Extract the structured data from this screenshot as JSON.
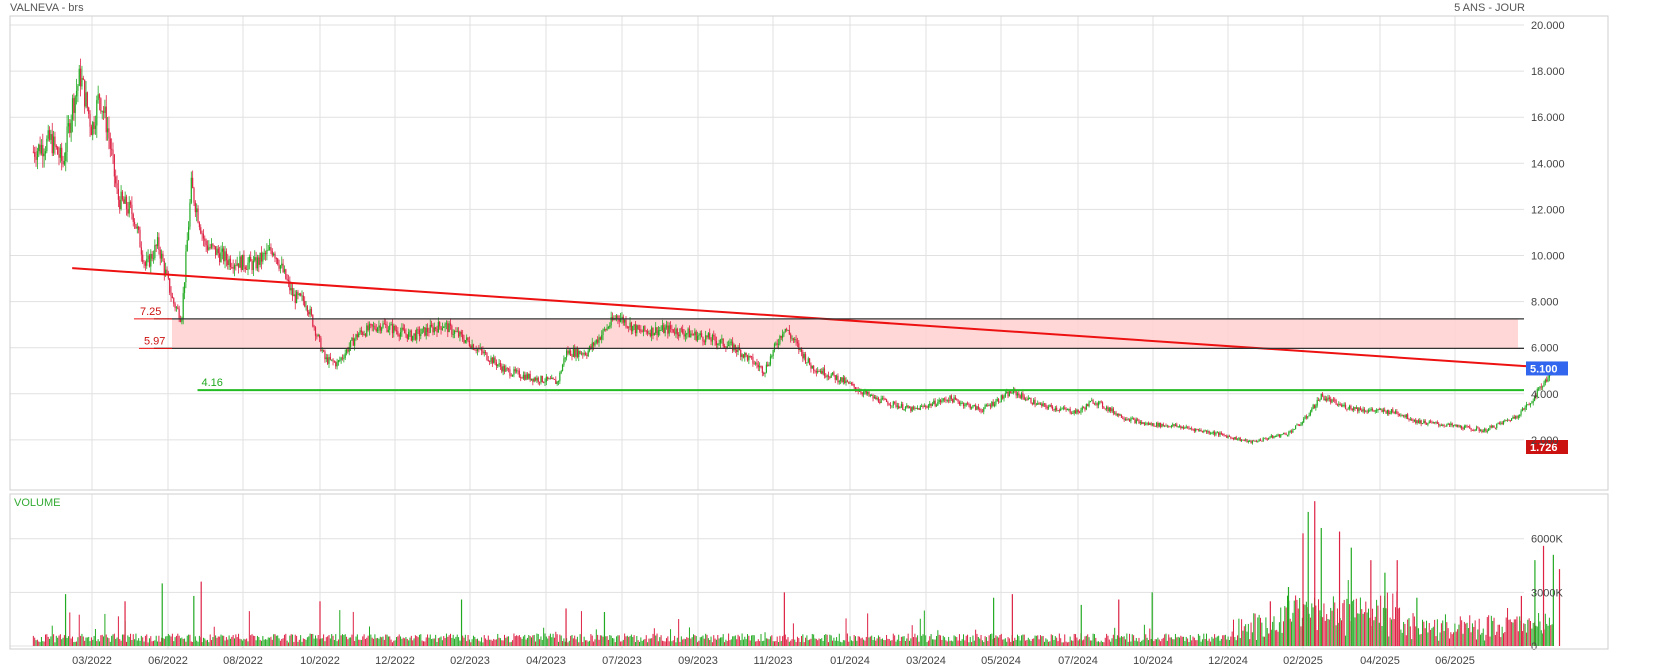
{
  "header": {
    "title": "VALNEVA - brs",
    "period": "5 ANS - JOUR"
  },
  "colors": {
    "up": "#22aa22",
    "down": "#dd2244",
    "trendline": "#ee1111",
    "support_line": "#22bb22",
    "zone_fill": "#ffd0d0",
    "last_price_badge": "#3366ee",
    "min_price_badge": "#cc1111"
  },
  "chart_data": [
    {
      "type": "candlestick",
      "title": "VALNEVA - brs",
      "x_tick_labels": [
        "03/2022",
        "06/2022",
        "08/2022",
        "10/2022",
        "12/2022",
        "02/2023",
        "04/2023",
        "07/2023",
        "09/2023",
        "11/2023",
        "01/2024",
        "03/2024",
        "05/2024",
        "07/2024",
        "10/2024",
        "12/2024",
        "02/2025",
        "04/2025",
        "06/2025"
      ],
      "y_tick_labels": [
        "2.000",
        "4.000",
        "6.000",
        "8.000",
        "10.000",
        "12.000",
        "14.000",
        "16.000",
        "18.000",
        "20.000"
      ],
      "ylim": [
        1.0,
        20.0
      ],
      "grid": true,
      "price_path": [
        [
          "2021-12-20",
          14.5
        ],
        [
          "2022-01-10",
          15.0
        ],
        [
          "2022-01-25",
          14.0
        ],
        [
          "2022-02-05",
          16.5
        ],
        [
          "2022-02-15",
          17.8
        ],
        [
          "2022-03-01",
          15.5
        ],
        [
          "2022-03-10",
          17.0
        ],
        [
          "2022-03-20",
          15.5
        ],
        [
          "2022-04-01",
          12.5
        ],
        [
          "2022-04-20",
          11.8
        ],
        [
          "2022-05-05",
          9.5
        ],
        [
          "2022-05-20",
          10.5
        ],
        [
          "2022-06-05",
          8.0
        ],
        [
          "2022-06-12",
          7.3
        ],
        [
          "2022-06-20",
          13.0
        ],
        [
          "2022-07-01",
          10.5
        ],
        [
          "2022-07-20",
          9.8
        ],
        [
          "2022-08-10",
          9.6
        ],
        [
          "2022-08-25",
          10.3
        ],
        [
          "2022-09-10",
          8.2
        ],
        [
          "2022-09-20",
          8.0
        ],
        [
          "2022-10-05",
          5.5
        ],
        [
          "2022-10-15",
          5.3
        ],
        [
          "2022-11-01",
          6.6
        ],
        [
          "2022-11-20",
          7.0
        ],
        [
          "2022-12-15",
          6.5
        ],
        [
          "2023-01-10",
          7.0
        ],
        [
          "2023-02-01",
          6.2
        ],
        [
          "2023-03-01",
          5.0
        ],
        [
          "2023-03-20",
          4.7
        ],
        [
          "2023-04-15",
          4.5
        ],
        [
          "2023-04-25",
          5.8
        ],
        [
          "2023-05-20",
          5.8
        ],
        [
          "2023-06-25",
          7.4
        ],
        [
          "2023-07-15",
          6.7
        ],
        [
          "2023-08-10",
          6.8
        ],
        [
          "2023-09-10",
          6.4
        ],
        [
          "2023-10-01",
          6.0
        ],
        [
          "2023-10-25",
          5.0
        ],
        [
          "2023-11-10",
          6.9
        ],
        [
          "2023-12-01",
          5.2
        ],
        [
          "2023-12-25",
          4.6
        ],
        [
          "2024-01-20",
          3.8
        ],
        [
          "2024-02-20",
          3.3
        ],
        [
          "2024-03-20",
          3.8
        ],
        [
          "2024-04-15",
          3.3
        ],
        [
          "2024-05-10",
          4.1
        ],
        [
          "2024-06-01",
          3.5
        ],
        [
          "2024-07-01",
          3.2
        ],
        [
          "2024-07-20",
          3.7
        ],
        [
          "2024-08-25",
          3.0
        ],
        [
          "2024-09-20",
          2.7
        ],
        [
          "2024-10-20",
          2.6
        ],
        [
          "2024-11-20",
          2.3
        ],
        [
          "2024-12-20",
          1.9
        ],
        [
          "2025-01-20",
          2.3
        ],
        [
          "2025-02-01",
          2.8
        ],
        [
          "2025-02-15",
          3.9
        ],
        [
          "2025-03-01",
          3.5
        ],
        [
          "2025-03-20",
          3.3
        ],
        [
          "2025-04-15",
          3.2
        ],
        [
          "2025-05-01",
          2.8
        ],
        [
          "2025-06-01",
          2.6
        ],
        [
          "2025-06-25",
          2.4
        ],
        [
          "2025-07-20",
          3.0
        ],
        [
          "2025-08-01",
          3.6
        ],
        [
          "2025-08-20",
          5.1
        ]
      ],
      "annotations": {
        "resistance_upper": {
          "label": "7.25",
          "value": 7.25,
          "from": "2022-05-15",
          "to": "2025-09-01"
        },
        "resistance_lower": {
          "label": "5.97",
          "value": 5.97,
          "from": "2022-05-15",
          "to": "2025-09-01"
        },
        "support": {
          "label": "4.16",
          "value": 4.16,
          "from": "2022-06-25",
          "to": "2025-09-01"
        },
        "trendline": {
          "from": [
            "2022-02-05",
            9.45
          ],
          "to": [
            "2025-08-25",
            5.1
          ]
        }
      },
      "last_price": {
        "label": "5.100",
        "value": 5.1
      },
      "min_price": {
        "label": "1.726",
        "value": 1.726
      }
    },
    {
      "type": "bar",
      "title": "VOLUME",
      "y_tick_labels": [
        "0",
        "3000K",
        "6000K"
      ],
      "ylim": [
        0,
        8500
      ],
      "spikes": [
        [
          "2022-01-28",
          2900
        ],
        [
          "2022-04-10",
          2500
        ],
        [
          "2022-05-25",
          3500
        ],
        [
          "2022-06-28",
          3600
        ],
        [
          "2022-06-22",
          2800
        ],
        [
          "2022-10-01",
          2500
        ],
        [
          "2023-01-25",
          2600
        ],
        [
          "2023-04-25",
          2100
        ],
        [
          "2023-06-10",
          1900
        ],
        [
          "2023-11-10",
          3000
        ],
        [
          "2024-04-25",
          2700
        ],
        [
          "2024-05-10",
          2900
        ],
        [
          "2024-07-05",
          2300
        ],
        [
          "2024-08-20",
          2600
        ],
        [
          "2024-09-30",
          3000
        ],
        [
          "2025-01-05",
          2500
        ],
        [
          "2025-01-20",
          3300
        ],
        [
          "2025-02-01",
          6300
        ],
        [
          "2025-02-05",
          7500
        ],
        [
          "2025-02-10",
          8100
        ],
        [
          "2025-02-15",
          6600
        ],
        [
          "2025-03-01",
          6400
        ],
        [
          "2025-03-10",
          5500
        ],
        [
          "2025-03-25",
          4800
        ],
        [
          "2025-04-05",
          4100
        ],
        [
          "2025-04-15",
          4800
        ],
        [
          "2025-05-01",
          2700
        ],
        [
          "2025-07-25",
          2800
        ],
        [
          "2025-08-05",
          4800
        ],
        [
          "2025-08-12",
          5600
        ],
        [
          "2025-08-20",
          5100
        ],
        [
          "2025-08-25",
          4300
        ]
      ]
    }
  ]
}
